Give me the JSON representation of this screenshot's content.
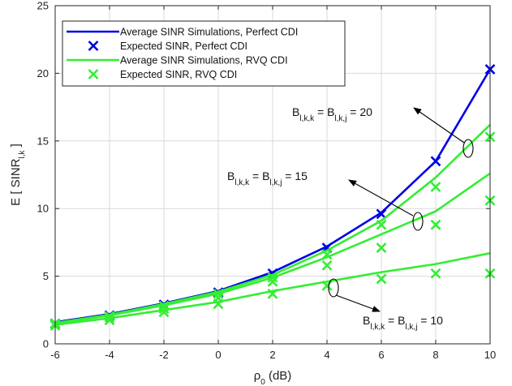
{
  "chart_data": {
    "type": "line",
    "title": "",
    "xlim": [
      -6,
      10
    ],
    "ylim": [
      0,
      25
    ],
    "x_ticks": [
      -6,
      -4,
      -2,
      0,
      2,
      4,
      6,
      8,
      10
    ],
    "y_ticks": [
      0,
      5,
      10,
      15,
      20,
      25
    ],
    "grid": true,
    "legend_position": "top-left",
    "series": [
      {
        "name": "Average SINR Simulations, Perfect CDI",
        "style": "line",
        "color": "#0000e6",
        "x": [
          -6,
          -4,
          -2,
          0,
          2,
          4,
          6,
          8,
          10
        ],
        "y": [
          1.6,
          2.2,
          3.0,
          3.9,
          5.3,
          7.2,
          9.7,
          13.5,
          20.3
        ]
      },
      {
        "name": "Expected SINR, Perfect CDI",
        "style": "marker-x",
        "color": "#0000e6",
        "x": [
          -6,
          -4,
          -2,
          0,
          2,
          4,
          6,
          8,
          10
        ],
        "y": [
          1.5,
          2.1,
          2.9,
          3.8,
          5.2,
          7.1,
          9.6,
          13.5,
          20.3
        ]
      },
      {
        "name": "Average SINR Simulations, RVQ CDI",
        "style": "line",
        "color": "#33ee33",
        "group": "B = 20",
        "x": [
          -6,
          -4,
          -2,
          0,
          2,
          4,
          6,
          8,
          10
        ],
        "y": [
          1.55,
          2.15,
          2.95,
          3.85,
          5.1,
          6.9,
          9.1,
          12.3,
          16.2
        ]
      },
      {
        "name": "",
        "style": "line",
        "color": "#33ee33",
        "group": "B = 15",
        "x": [
          -6,
          -4,
          -2,
          0,
          2,
          4,
          6,
          8,
          10
        ],
        "y": [
          1.5,
          2.1,
          2.85,
          3.7,
          4.9,
          6.4,
          8.1,
          9.8,
          12.6
        ]
      },
      {
        "name": "",
        "style": "line",
        "color": "#33ee33",
        "group": "B = 10",
        "x": [
          -6,
          -4,
          -2,
          0,
          2,
          4,
          6,
          8,
          10
        ],
        "y": [
          1.4,
          1.9,
          2.5,
          3.1,
          3.9,
          4.6,
          5.3,
          5.9,
          6.7
        ]
      },
      {
        "name": "Expected SINR, RVQ CDI",
        "style": "marker-x",
        "color": "#33ee33",
        "group": "B = 20",
        "x": [
          -6,
          -4,
          -2,
          0,
          2,
          4,
          6,
          8,
          10
        ],
        "y": [
          1.5,
          2.05,
          2.8,
          3.7,
          4.9,
          6.6,
          8.8,
          11.6,
          15.3
        ]
      },
      {
        "name": "",
        "style": "marker-x",
        "color": "#33ee33",
        "group": "B = 15",
        "x": [
          -6,
          -4,
          -2,
          0,
          2,
          4,
          6,
          8,
          10
        ],
        "y": [
          1.45,
          1.95,
          2.6,
          3.4,
          4.6,
          5.8,
          7.1,
          8.8,
          10.6
        ]
      },
      {
        "name": "",
        "style": "marker-x",
        "color": "#33ee33",
        "group": "B = 10",
        "x": [
          -6,
          -4,
          -2,
          0,
          2,
          4,
          6,
          8,
          10
        ],
        "y": [
          1.35,
          1.75,
          2.35,
          2.95,
          3.7,
          4.3,
          4.8,
          5.2,
          5.2
        ]
      }
    ],
    "annotations": [
      {
        "id": "b20",
        "sub": "l,k,k",
        "sub2": "l,k,j",
        "value": "20"
      },
      {
        "id": "b15",
        "sub": "l,k,k",
        "sub2": "l,k,j",
        "value": "15"
      },
      {
        "id": "b10",
        "sub": "l,k,k",
        "sub2": "l,k,j",
        "value": "10"
      }
    ],
    "xlabel": {
      "symbol": "ρ",
      "sub": "0",
      "unit": "(dB)"
    },
    "ylabel": {
      "prefix": "E [ SINR",
      "sub": "l,k",
      "suffix": " ]"
    }
  }
}
